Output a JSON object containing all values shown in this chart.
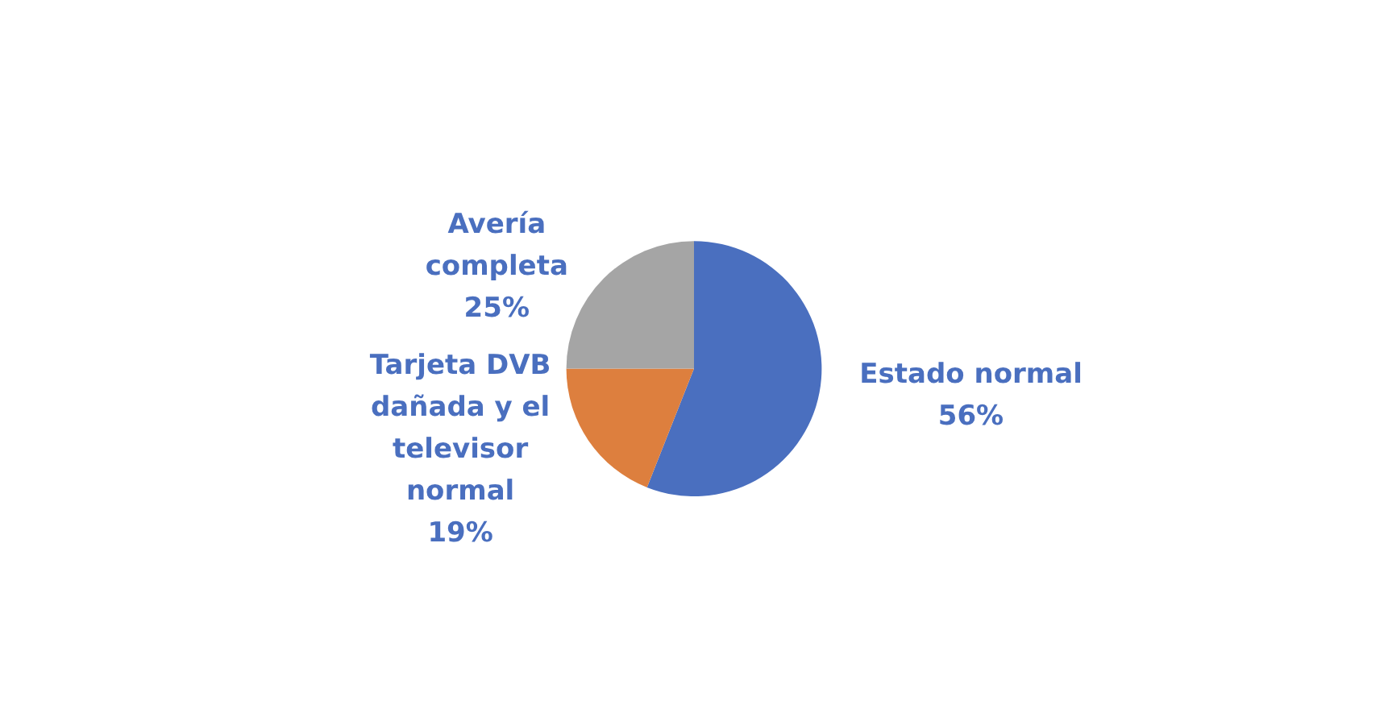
{
  "chart_data": {
    "type": "pie",
    "categories": [
      "Estado normal",
      "Tarjeta DVB dañada y el televisor normal",
      "Avería completa"
    ],
    "values": [
      56,
      19,
      25
    ],
    "value_labels": [
      "56%",
      "19%",
      "25%"
    ],
    "colors": [
      "#4a6fbf",
      "#dd7f3e",
      "#a5a5a5"
    ],
    "legend": false
  }
}
